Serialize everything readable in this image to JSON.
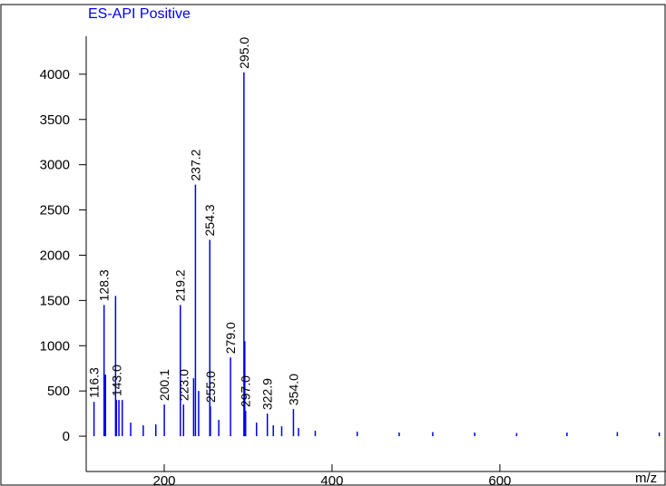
{
  "chart_data": {
    "type": "spectrum",
    "title": "ES-API Positive",
    "xlabel": "m/z",
    "color": "#0000ee",
    "x": [
      116.3,
      128.3,
      130,
      142,
      143.0,
      146,
      150,
      200.1,
      219.2,
      223.0,
      235,
      237.2,
      241,
      254.3,
      255.0,
      279.0,
      295.0,
      296,
      297.0,
      322.9,
      354.0,
      160,
      175,
      190,
      265,
      310,
      330,
      340,
      360,
      380,
      430,
      480,
      520,
      570,
      620,
      680,
      740,
      790
    ],
    "values": [
      380,
      1450,
      680,
      1550,
      400,
      400,
      400,
      350,
      1450,
      350,
      640,
      2780,
      500,
      2170,
      330,
      870,
      4020,
      1050,
      280,
      250,
      300,
      150,
      120,
      130,
      180,
      150,
      120,
      110,
      90,
      60,
      50,
      40,
      45,
      40,
      35,
      40,
      45,
      40
    ],
    "peak_labels": [
      "116.3",
      "128.3",
      null,
      null,
      "143.0",
      null,
      null,
      "200.1",
      "219.2",
      "223.0",
      null,
      "237.2",
      null,
      "254.3",
      "255.0",
      "279.0",
      "295.0",
      null,
      "297.0",
      "322.9",
      "354.0",
      null,
      null,
      null,
      null,
      null,
      null,
      null,
      null,
      null,
      null,
      null,
      null,
      null,
      null,
      null,
      null,
      null
    ],
    "xlim": [
      107,
      798
    ],
    "ylim": [
      -390,
      4770
    ],
    "xticks": [
      200,
      400,
      600
    ],
    "yticks": [
      0,
      500,
      1000,
      1500,
      2000,
      2500,
      3000,
      3500,
      4000
    ]
  }
}
